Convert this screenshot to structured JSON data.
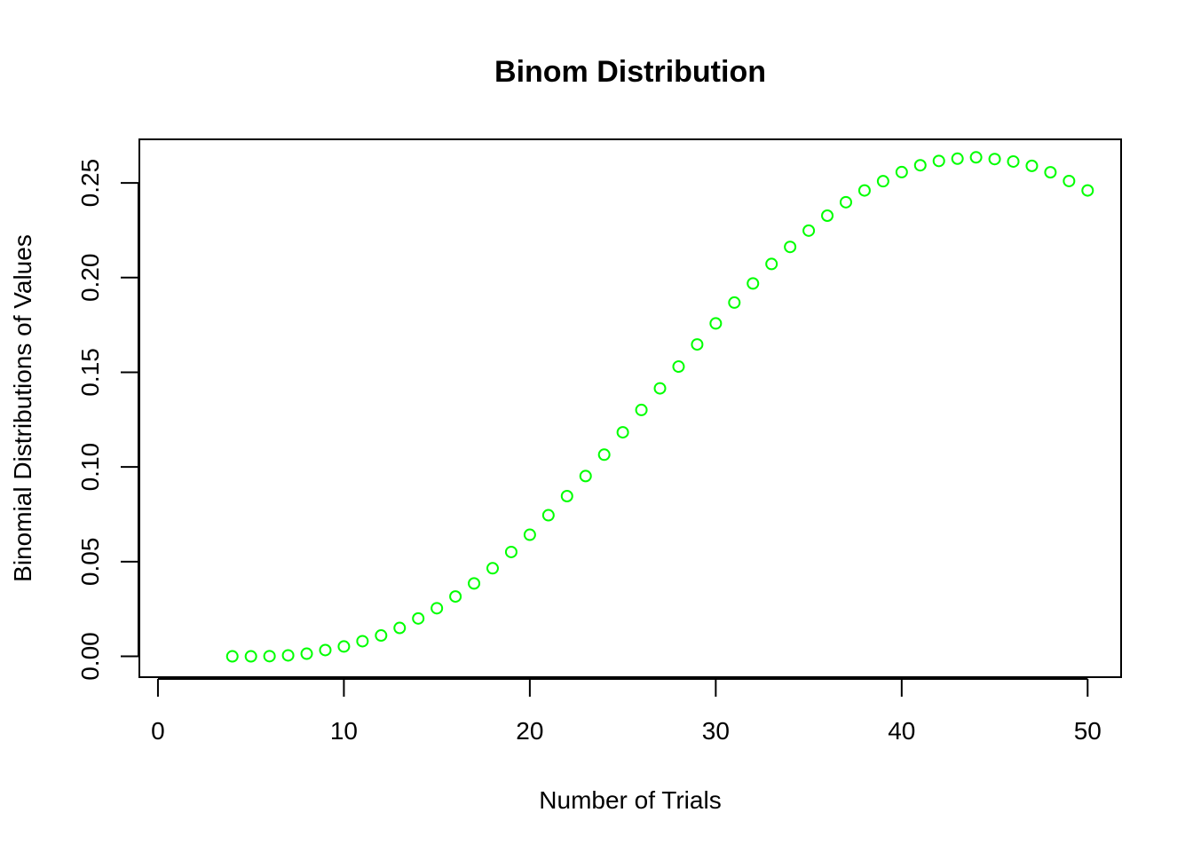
{
  "chart_data": {
    "type": "scatter",
    "title": "Binom Distribution",
    "xlabel": "Number of Trials",
    "ylabel": "Binomial Distributions of Values",
    "xlim": [
      -1,
      51.8
    ],
    "ylim": [
      -0.011,
      0.273
    ],
    "x_ticks": [
      0,
      10,
      20,
      30,
      40,
      50
    ],
    "x_tick_labels": [
      "0",
      "10",
      "20",
      "30",
      "40",
      "50"
    ],
    "y_ticks": [
      0.0,
      0.05,
      0.1,
      0.15,
      0.2,
      0.25
    ],
    "y_tick_labels": [
      "0.00",
      "0.05",
      "0.10",
      "0.15",
      "0.20",
      "0.25"
    ],
    "grid": false,
    "marker": "open-circle",
    "point_color": "#00ff00",
    "series": [
      {
        "x": [
          4,
          5,
          6,
          7,
          8,
          9,
          10,
          11,
          12,
          13,
          14,
          15,
          16,
          17,
          18,
          19,
          20,
          21,
          22,
          23,
          24,
          25,
          26,
          27,
          28,
          29,
          30,
          31,
          32,
          33,
          34,
          35,
          36,
          37,
          38,
          39,
          40,
          41,
          42,
          43,
          44,
          45,
          46,
          47,
          48,
          49,
          50
        ],
        "values": [
          0.0,
          0.0,
          0.0001,
          0.0005,
          0.0014,
          0.0033,
          0.0052,
          0.008,
          0.011,
          0.015,
          0.02,
          0.0254,
          0.0316,
          0.0385,
          0.0465,
          0.0551,
          0.0642,
          0.0745,
          0.0846,
          0.0952,
          0.1065,
          0.1183,
          0.1301,
          0.1415,
          0.153,
          0.1647,
          0.1758,
          0.1868,
          0.1969,
          0.2072,
          0.2162,
          0.2248,
          0.2327,
          0.2398,
          0.246,
          0.2509,
          0.2557,
          0.2593,
          0.2616,
          0.2628,
          0.2635,
          0.2626,
          0.2613,
          0.259,
          0.2556,
          0.251,
          0.246
        ]
      }
    ]
  }
}
